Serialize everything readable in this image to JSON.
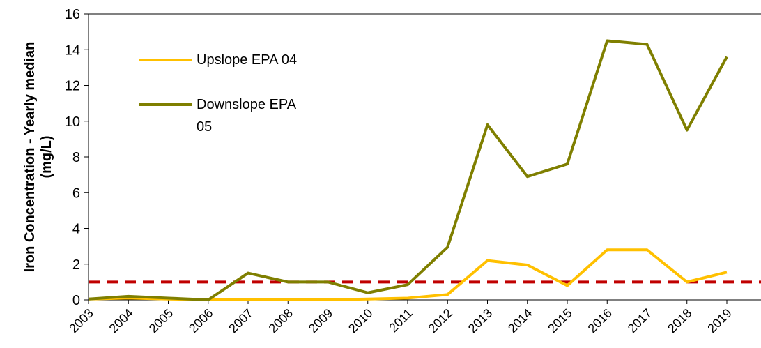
{
  "chart_data": {
    "type": "line",
    "ylabel": "Iron Concentration - Yearly median (mg/L)",
    "categories": [
      "2003",
      "2004",
      "2005",
      "2006",
      "2007",
      "2008",
      "2009",
      "2010",
      "2011",
      "2012",
      "2013",
      "2014",
      "2015",
      "2016",
      "2017",
      "2018",
      "2019"
    ],
    "series": [
      {
        "name": "Upslope EPA 04",
        "color": "#ffc000",
        "values": [
          0.05,
          0.1,
          0.05,
          0,
          0,
          0,
          0,
          0.05,
          0.1,
          0.3,
          2.2,
          1.95,
          0.8,
          2.8,
          2.8,
          1.0,
          1.55
        ]
      },
      {
        "name": "Downslope EPA 05",
        "color": "#7f7f00",
        "values": [
          0.05,
          0.2,
          0.1,
          0,
          1.5,
          1.0,
          1.0,
          0.4,
          0.85,
          2.95,
          9.8,
          6.9,
          7.6,
          14.5,
          14.3,
          9.5,
          13.6
        ]
      }
    ],
    "threshold": {
      "value": 1,
      "color": "#c00000"
    },
    "ylim": [
      0,
      16
    ],
    "yticks": [
      0,
      2,
      4,
      6,
      8,
      10,
      12,
      14,
      16
    ]
  }
}
